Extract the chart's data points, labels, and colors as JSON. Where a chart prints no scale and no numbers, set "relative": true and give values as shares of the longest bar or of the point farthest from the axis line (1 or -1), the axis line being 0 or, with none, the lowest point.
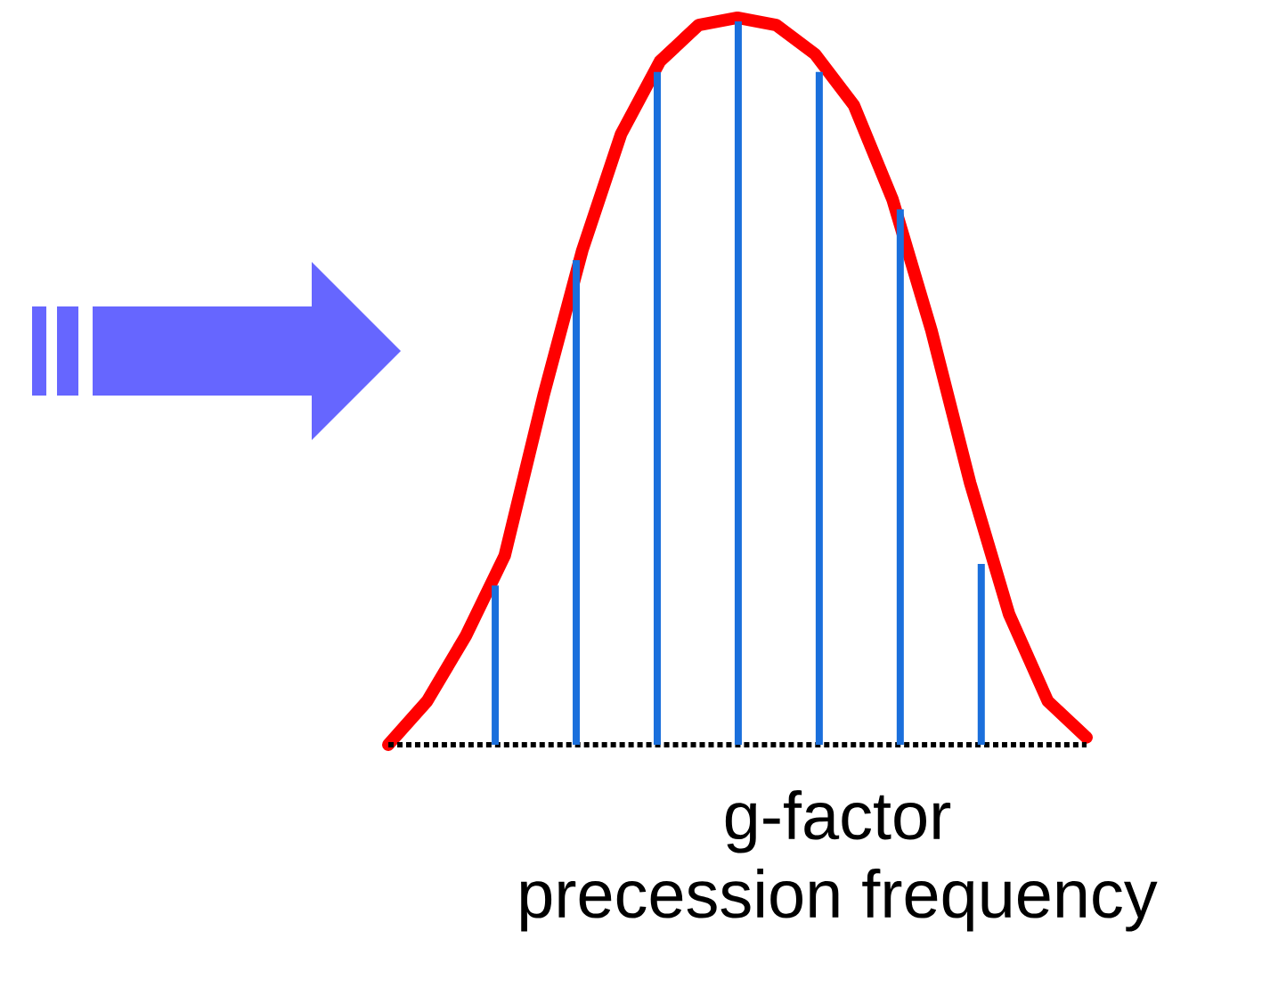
{
  "chart_data": [
    {
      "type": "bar",
      "relative": true,
      "categories": [
        null,
        null,
        null,
        null,
        null,
        null,
        null
      ],
      "xlabel": "g-factor",
      "annotations": [
        "precession frequency"
      ],
      "color": "#1a6fdc",
      "values": [
        0.22,
        0.67,
        0.93,
        1,
        0.93,
        0.74,
        0.25
      ]
    },
    {
      "type": "line",
      "relative": true,
      "categories": [
        null,
        null,
        null,
        null,
        null,
        null,
        null,
        null,
        null,
        null,
        null,
        null,
        null,
        null,
        null,
        null,
        null,
        null,
        null
      ],
      "color": "#ff0000",
      "values": [
        0,
        0.06,
        0.15,
        0.26,
        0.48,
        0.68,
        0.84,
        0.94,
        0.99,
        1,
        0.99,
        0.95,
        0.88,
        0.75,
        0.57,
        0.36,
        0.18,
        0.06,
        0.01
      ]
    }
  ]
}
